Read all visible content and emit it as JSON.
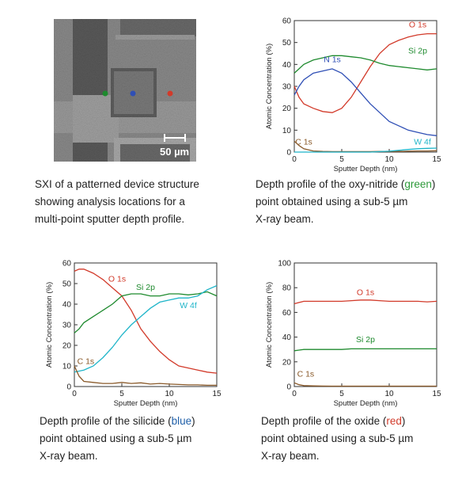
{
  "sxi": {
    "scale_label": "50 µm",
    "caption_lines": [
      "SXI of a patterned device structure",
      "showing analysis locations for a",
      "multi-point sputter depth profile."
    ],
    "point_colors": {
      "green": "#1e8a2e",
      "blue": "#2f4fb5",
      "red": "#d23a2a"
    }
  },
  "captions": {
    "oxynitride": {
      "line1_pre": "Depth profile of the oxy-nitride (",
      "line1_hl": "green",
      "line1_post": ")",
      "line2": "point obtained using a sub-5 µm",
      "line3": "X-ray beam."
    },
    "silicide": {
      "line1_pre": "Depth profile of the silicide (",
      "line1_hl": "blue",
      "line1_post": ")",
      "line2": "point obtained using a sub-5 µm",
      "line3": "X-ray beam."
    },
    "oxide": {
      "line1_pre": "Depth profile of the oxide (",
      "line1_hl": "red",
      "line1_post": ")",
      "line2": "point obtained using a sub-5 µm",
      "line3": "X-ray beam."
    }
  },
  "chart_data": [
    {
      "id": "oxynitride",
      "type": "line",
      "xlabel": "Sputter Depth (nm)",
      "ylabel": "Atomic Concentration (%)",
      "xlim": [
        0,
        15
      ],
      "ylim": [
        0,
        60
      ],
      "xticks": [
        0,
        5,
        10,
        15
      ],
      "yticks": [
        0,
        10,
        20,
        30,
        40,
        50,
        60
      ],
      "series": [
        {
          "name": "O 1s",
          "color": "#d23a2a",
          "x": [
            0,
            0.5,
            1,
            2,
            3,
            4,
            5,
            6,
            7,
            8,
            9,
            10,
            11,
            12,
            13,
            14,
            15
          ],
          "y": [
            30,
            25,
            22,
            20,
            18.5,
            18,
            20,
            25,
            32,
            39,
            45,
            49,
            51,
            52.5,
            53.5,
            54,
            54
          ]
        },
        {
          "name": "Si 2p",
          "color": "#1e8a2e",
          "x": [
            0,
            0.5,
            1,
            2,
            3,
            4,
            5,
            6,
            7,
            8,
            9,
            10,
            11,
            12,
            13,
            14,
            15
          ],
          "y": [
            36,
            38,
            40,
            42,
            43,
            44,
            44,
            43.5,
            43,
            42,
            40.5,
            39.5,
            39,
            38.5,
            38,
            37.5,
            38
          ]
        },
        {
          "name": "N 1s",
          "color": "#2f4fb5",
          "x": [
            0,
            0.5,
            1,
            2,
            3,
            4,
            5,
            6,
            7,
            8,
            9,
            10,
            11,
            12,
            13,
            14,
            15
          ],
          "y": [
            26,
            30,
            33,
            36,
            37,
            38,
            36,
            32,
            27,
            22,
            18,
            14,
            12,
            10,
            9,
            8,
            7.5
          ]
        },
        {
          "name": "C 1s",
          "color": "#8a5a2a",
          "x": [
            0,
            0.5,
            1,
            2,
            3,
            4,
            5,
            6,
            7,
            8,
            9,
            10,
            11,
            12,
            13,
            14,
            15
          ],
          "y": [
            5,
            3,
            1.5,
            0.5,
            0.3,
            0.2,
            0.2,
            0.2,
            0.2,
            0.2,
            0.3,
            0.3,
            0.3,
            0.4,
            0.5,
            0.5,
            0.6
          ]
        },
        {
          "name": "W 4f",
          "color": "#1fb5c9",
          "x": [
            0,
            0.5,
            1,
            2,
            3,
            4,
            5,
            6,
            7,
            8,
            9,
            10,
            11,
            12,
            13,
            14,
            15
          ],
          "y": [
            0,
            0,
            0,
            0,
            0,
            0,
            0,
            0,
            0,
            0,
            0.2,
            0.4,
            0.8,
            1.2,
            1.5,
            1.7,
            1.8
          ]
        }
      ],
      "labels": [
        {
          "text": "O 1s",
          "series": "O 1s",
          "x": 13.0,
          "y": 57
        },
        {
          "text": "Si 2p",
          "series": "Si 2p",
          "x": 13.0,
          "y": 45
        },
        {
          "text": "N 1s",
          "series": "N 1s",
          "x": 4.0,
          "y": 41
        },
        {
          "text": "C 1s",
          "series": "C 1s",
          "x": 1.0,
          "y": 3.5
        },
        {
          "text": "W 4f",
          "series": "W 4f",
          "x": 13.5,
          "y": 3.5
        }
      ]
    },
    {
      "id": "silicide",
      "type": "line",
      "xlabel": "Sputter Depth (nm)",
      "ylabel": "Atomic Concentration (%)",
      "xlim": [
        0,
        15
      ],
      "ylim": [
        0,
        60
      ],
      "xticks": [
        0,
        5,
        10,
        15
      ],
      "yticks": [
        0,
        10,
        20,
        30,
        40,
        50,
        60
      ],
      "series": [
        {
          "name": "O 1s",
          "color": "#d23a2a",
          "x": [
            0,
            0.5,
            1,
            2,
            3,
            4,
            5,
            6,
            7,
            8,
            9,
            10,
            11,
            12,
            13,
            14,
            15
          ],
          "y": [
            56,
            57,
            57,
            55,
            52,
            48,
            44,
            37,
            28,
            22,
            17,
            13,
            10,
            9,
            8,
            7,
            6.5
          ]
        },
        {
          "name": "Si 2p",
          "color": "#1e8a2e",
          "x": [
            0,
            0.5,
            1,
            2,
            3,
            4,
            5,
            6,
            7,
            8,
            9,
            10,
            11,
            12,
            13,
            14,
            15
          ],
          "y": [
            26,
            28,
            31,
            34,
            37,
            40,
            44,
            45,
            45,
            44,
            44,
            45,
            45,
            44.5,
            45,
            46,
            44
          ]
        },
        {
          "name": "W 4f",
          "color": "#1fb5c9",
          "x": [
            0,
            0.5,
            1,
            2,
            3,
            4,
            5,
            6,
            7,
            8,
            9,
            10,
            11,
            12,
            13,
            14,
            15
          ],
          "y": [
            7,
            7.5,
            8,
            10,
            14,
            19,
            25,
            30,
            34,
            38,
            41,
            42,
            43,
            43,
            44,
            47,
            49
          ]
        },
        {
          "name": "C 1s",
          "color": "#8a5a2a",
          "x": [
            0,
            0.5,
            1,
            2,
            3,
            4,
            5,
            6,
            7,
            8,
            9,
            10,
            11,
            12,
            13,
            14,
            15
          ],
          "y": [
            10,
            5,
            2.5,
            2,
            1.5,
            1.5,
            2,
            1.5,
            1.8,
            1.2,
            1.5,
            1.2,
            1,
            0.8,
            0.8,
            0.6,
            0.6
          ]
        }
      ],
      "labels": [
        {
          "text": "O 1s",
          "series": "O 1s",
          "x": 4.5,
          "y": 51
        },
        {
          "text": "Si 2p",
          "series": "Si 2p",
          "x": 7.5,
          "y": 47
        },
        {
          "text": "W 4f",
          "series": "W 4f",
          "x": 12.0,
          "y": 38
        },
        {
          "text": "C 1s",
          "series": "C 1s",
          "x": 1.2,
          "y": 11
        }
      ]
    },
    {
      "id": "oxide",
      "type": "line",
      "xlabel": "Sputter Depth (nm)",
      "ylabel": "Atomic Concentration (%)",
      "xlim": [
        0,
        15
      ],
      "ylim": [
        0,
        100
      ],
      "xticks": [
        0,
        5,
        10,
        15
      ],
      "yticks": [
        0,
        20,
        40,
        60,
        80,
        100
      ],
      "series": [
        {
          "name": "O 1s",
          "color": "#d23a2a",
          "x": [
            0,
            0.5,
            1,
            2,
            3,
            4,
            5,
            6,
            7,
            8,
            9,
            10,
            11,
            12,
            13,
            14,
            15
          ],
          "y": [
            67,
            68,
            69,
            69,
            69,
            69,
            69,
            69.5,
            70,
            70,
            69.5,
            69,
            69,
            69,
            69,
            68.5,
            69
          ]
        },
        {
          "name": "Si 2p",
          "color": "#1e8a2e",
          "x": [
            0,
            0.5,
            1,
            2,
            3,
            4,
            5,
            6,
            7,
            8,
            9,
            10,
            11,
            12,
            13,
            14,
            15
          ],
          "y": [
            29,
            29.5,
            30,
            30,
            30,
            30,
            30,
            30.5,
            30.5,
            30.5,
            30.5,
            30.5,
            30.5,
            30.5,
            30.5,
            30.5,
            30.5
          ]
        },
        {
          "name": "C 1s",
          "color": "#8a5a2a",
          "x": [
            0,
            0.5,
            1,
            2,
            3,
            4,
            5,
            6,
            7,
            8,
            9,
            10,
            11,
            12,
            13,
            14,
            15
          ],
          "y": [
            3,
            1.5,
            0.8,
            0.5,
            0.4,
            0.3,
            0.3,
            0.3,
            0.3,
            0.3,
            0.3,
            0.3,
            0.3,
            0.3,
            0.3,
            0.3,
            0.3
          ]
        }
      ],
      "labels": [
        {
          "text": "O 1s",
          "series": "O 1s",
          "x": 7.5,
          "y": 74
        },
        {
          "text": "Si 2p",
          "series": "Si 2p",
          "x": 7.5,
          "y": 36
        },
        {
          "text": "C 1s",
          "series": "C 1s",
          "x": 1.2,
          "y": 8
        }
      ]
    }
  ]
}
